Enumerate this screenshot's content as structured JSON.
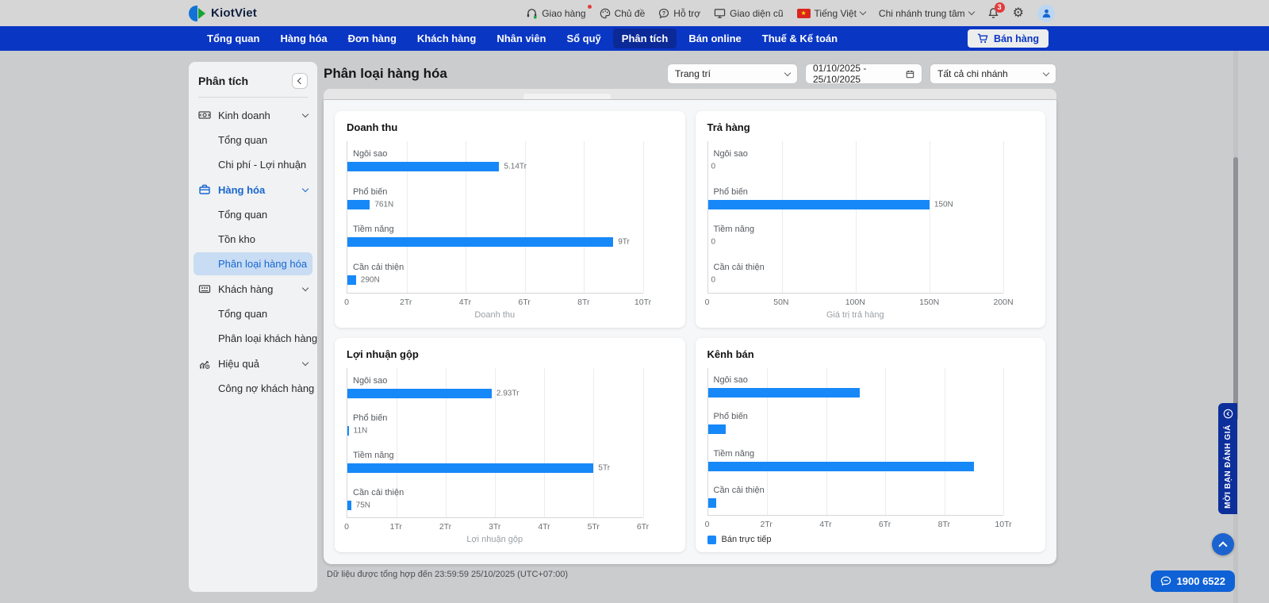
{
  "topbar": {
    "brand": "KiotViet",
    "delivery": "Giao hàng",
    "theme": "Chủ đề",
    "support": "Hỗ trợ",
    "legacy_ui": "Giao diện cũ",
    "language": "Tiếng Việt",
    "branch": "Chi nhánh trung tâm",
    "bell_badge": "3",
    "flag_star": "★"
  },
  "nav": {
    "tabs": [
      "Tổng quan",
      "Hàng hóa",
      "Đơn hàng",
      "Khách hàng",
      "Nhân viên",
      "Sổ quỹ",
      "Phân tích",
      "Bán online",
      "Thuế & Kế toán"
    ],
    "active_tab": "Phân tích",
    "sell_button": "Bán hàng"
  },
  "sidebar": {
    "title": "Phân tích",
    "sections": [
      {
        "label": "Kinh doanh",
        "children": [
          "Tổng quan",
          "Chi phí - Lợi nhuận"
        ]
      },
      {
        "label": "Hàng hóa",
        "children": [
          "Tổng quan",
          "Tồn kho",
          "Phân loại hàng hóa"
        ]
      },
      {
        "label": "Khách hàng",
        "children": [
          "Tổng quan",
          "Phân loại khách hàng"
        ]
      },
      {
        "label": "Hiệu quả",
        "children": [
          "Công nợ khách hàng"
        ]
      }
    ],
    "active_item": "Phân loại hàng hóa"
  },
  "header": {
    "title": "Phân loại hàng hóa",
    "category_filter": "Trang trí",
    "date_range": "01/10/2025 - 25/10/2025",
    "branch_filter": "Tất cả chi nhánh"
  },
  "chart_data": [
    {
      "type": "bar",
      "orientation": "horizontal",
      "title": "Doanh thu",
      "xlabel": "Doanh thu",
      "categories": [
        "Ngôi sao",
        "Phổ biến",
        "Tiềm năng",
        "Cần cải thiện"
      ],
      "values": [
        5.14,
        0.761,
        9,
        0.29
      ],
      "value_labels": [
        "5.14Tr",
        "761N",
        "9Tr",
        "290N"
      ],
      "xmax": 10,
      "ticks": [
        "0",
        "2Tr",
        "4Tr",
        "6Tr",
        "8Tr",
        "10Tr"
      ],
      "grid": true
    },
    {
      "type": "bar",
      "orientation": "horizontal",
      "title": "Trả hàng",
      "xlabel": "Giá trị trả hàng",
      "categories": [
        "Ngôi sao",
        "Phổ biến",
        "Tiềm năng",
        "Cần cải thiện"
      ],
      "values": [
        0,
        150,
        0,
        0
      ],
      "value_labels": [
        "0",
        "150N",
        "0",
        "0"
      ],
      "xmax": 200,
      "ticks": [
        "0",
        "50N",
        "100N",
        "150N",
        "200N"
      ],
      "grid": true
    },
    {
      "type": "bar",
      "orientation": "horizontal",
      "title": "Lợi nhuận gộp",
      "xlabel": "Lợi nhuận gộp",
      "categories": [
        "Ngôi sao",
        "Phổ biến",
        "Tiềm năng",
        "Cần cải thiện"
      ],
      "values": [
        2.93,
        0.011,
        5,
        0.075
      ],
      "value_labels": [
        "2.93Tr",
        "11N",
        "5Tr",
        "75N"
      ],
      "xmax": 6,
      "ticks": [
        "0",
        "1Tr",
        "2Tr",
        "3Tr",
        "4Tr",
        "5Tr",
        "6Tr"
      ],
      "grid": true
    },
    {
      "type": "bar",
      "orientation": "horizontal",
      "title": "Kênh bán",
      "xlabel": "",
      "legend": "Bán trực tiếp",
      "legend_position": "bottom-left",
      "categories": [
        "Ngôi sao",
        "Phổ biến",
        "Tiềm năng",
        "Cần cải thiện"
      ],
      "values": [
        5.14,
        0.61,
        9,
        0.29
      ],
      "value_labels": null,
      "xmax": 10,
      "ticks": [
        "0",
        "2Tr",
        "4Tr",
        "6Tr",
        "8Tr",
        "10Tr"
      ],
      "grid": true
    }
  ],
  "footer": {
    "summary": "Dữ liệu được tổng hợp đến 23:59:59 25/10/2025 (UTC+07:00)"
  },
  "floating": {
    "feedback": "MỜI BẠN ĐÁNH GIÁ",
    "hotline": "1900 6522"
  },
  "colors": {
    "accent": "#0a36c4",
    "nav-active": "#0b2a97",
    "bar": "#1788f8",
    "link": "#1766d1",
    "active-bg": "#c8dcf3",
    "badge": "#e23c3c",
    "feedback": "#0d2f9b",
    "hotline": "#0f62d6"
  }
}
